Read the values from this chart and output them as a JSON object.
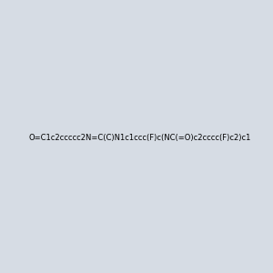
{
  "smiles": "O=C1c2ccccc2N=C(C)N1c1ccc(F)c(NC(=O)c2cccc(F)c2)c1",
  "title": "",
  "bg_color": "#d6dce4",
  "img_size": [
    300,
    300
  ]
}
